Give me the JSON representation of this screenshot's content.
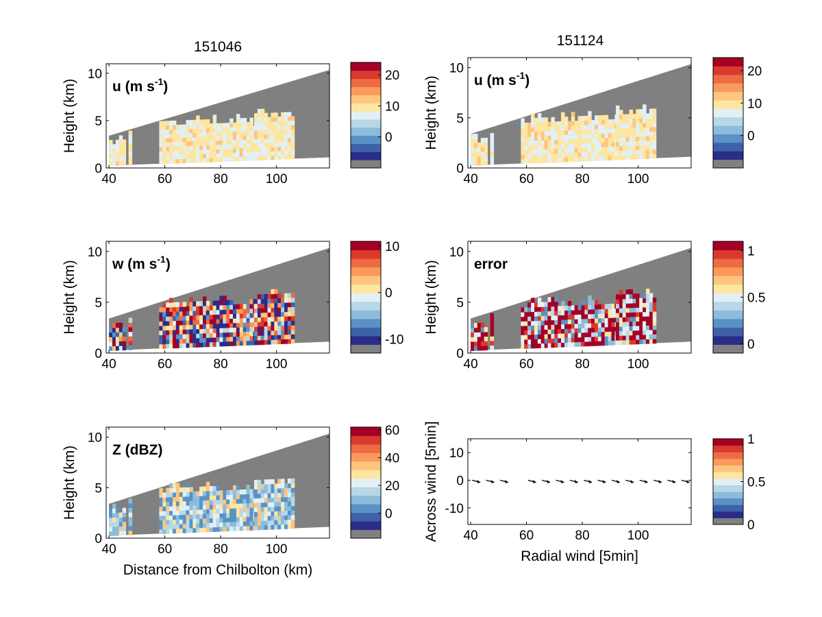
{
  "column_titles": [
    "151046",
    "151124"
  ],
  "colormap": [
    "#808080",
    "#2b2c88",
    "#3d62a9",
    "#5b92c5",
    "#8cbcd9",
    "#b8d7e8",
    "#e2f0f5",
    "#fde6a1",
    "#fdc57e",
    "#f99a5c",
    "#ee6b44",
    "#d93a2e",
    "#a50026"
  ],
  "chart_data": [
    {
      "type": "heatmap",
      "id": "u-151046",
      "quantity_label": "u (m s",
      "quantity_sup": "-1",
      "quantity_tail": ")",
      "xlabel": "",
      "ylabel": "Height (km)",
      "xlim": [
        39,
        119
      ],
      "ylim": [
        0,
        11
      ],
      "xticks": [
        40,
        60,
        80,
        100
      ],
      "yticks": [
        0,
        5,
        10
      ],
      "colorbar": {
        "ticks": [
          0,
          10,
          20
        ],
        "range": [
          -10,
          24
        ]
      }
    },
    {
      "type": "heatmap",
      "id": "u-151124",
      "quantity_label": "u (m s",
      "quantity_sup": "-1",
      "quantity_tail": ")",
      "xlabel": "",
      "ylabel": "Height (km)",
      "xlim": [
        39,
        119
      ],
      "ylim": [
        0,
        11
      ],
      "xticks": [
        40,
        60,
        80,
        100
      ],
      "yticks": [
        0,
        5,
        10
      ],
      "colorbar": {
        "ticks": [
          0,
          10,
          20
        ],
        "range": [
          -10,
          24
        ]
      }
    },
    {
      "type": "heatmap",
      "id": "w-151046",
      "quantity_label": "w (m s",
      "quantity_sup": "-1",
      "quantity_tail": ")",
      "xlabel": "",
      "ylabel": "Height (km)",
      "xlim": [
        39,
        119
      ],
      "ylim": [
        0,
        11
      ],
      "xticks": [
        40,
        60,
        80,
        100
      ],
      "yticks": [
        0,
        5,
        10
      ],
      "colorbar": {
        "ticks": [
          -10,
          0,
          10
        ],
        "range": [
          -13,
          11
        ]
      }
    },
    {
      "type": "heatmap",
      "id": "error-151124",
      "quantity_label": "error",
      "quantity_sup": "",
      "quantity_tail": "",
      "xlabel": "",
      "ylabel": "Height (km)",
      "xlim": [
        39,
        119
      ],
      "ylim": [
        0,
        11
      ],
      "xticks": [
        40,
        60,
        80,
        100
      ],
      "yticks": [
        0,
        5,
        10
      ],
      "colorbar": {
        "ticks": [
          0,
          0.5,
          1
        ],
        "range": [
          -0.1,
          1.1
        ]
      }
    },
    {
      "type": "heatmap",
      "id": "z-151046",
      "quantity_label": "Z (dBZ)",
      "quantity_sup": "",
      "quantity_tail": "",
      "xlabel": "Distance from Chilbolton (km)",
      "ylabel": "Height (km)",
      "xlim": [
        39,
        119
      ],
      "ylim": [
        0,
        11
      ],
      "xticks": [
        40,
        60,
        80,
        100
      ],
      "yticks": [
        0,
        5,
        10
      ],
      "colorbar": {
        "ticks": [
          0,
          20,
          40,
          60
        ],
        "range": [
          -18,
          62
        ]
      }
    },
    {
      "type": "scatter",
      "id": "wind-vectors",
      "quantity_label": "",
      "quantity_sup": "",
      "quantity_tail": "",
      "xlabel": "Radial wind [5min]",
      "ylabel": "Across wind [5min]",
      "xlim": [
        39,
        119
      ],
      "ylim": [
        -16,
        15
      ],
      "xticks": [
        40,
        60,
        80,
        100
      ],
      "yticks": [
        -10,
        0,
        10
      ],
      "colorbar": {
        "ticks": [
          0,
          0.5,
          1
        ],
        "range": [
          0,
          1
        ]
      },
      "vectors_x": [
        42,
        47,
        52,
        62,
        67,
        72,
        77,
        82,
        87,
        92,
        97,
        102,
        107,
        112,
        117
      ],
      "vectors_y": [
        0,
        0,
        0,
        0,
        0,
        0,
        0,
        0,
        0,
        0,
        0,
        0,
        0,
        0,
        0
      ]
    }
  ]
}
